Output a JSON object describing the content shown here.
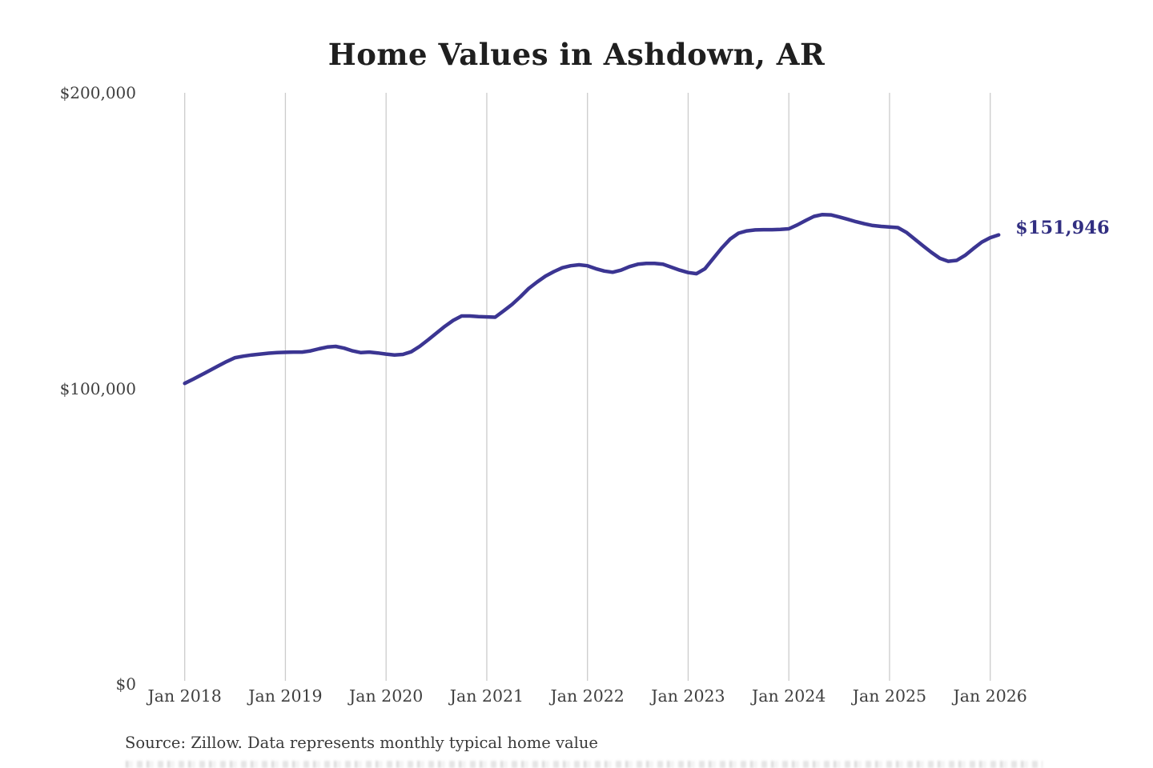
{
  "title": "Home Values in Ashdown, AR",
  "end_label": "$151,946",
  "source_note": "Source: Zillow. Data represents monthly typical home value",
  "colors": {
    "line": "#3b3592",
    "end_label": "#312e81",
    "grid": "#cccccc",
    "title_text": "#1f1f1f",
    "axis_text": "#3f3f3f",
    "source_text": "#3a3a3a",
    "background": "#ffffff"
  },
  "chart_data": {
    "type": "line",
    "title": "Home Values in Ashdown, AR",
    "xlabel": "",
    "ylabel": "",
    "ylim": [
      0,
      200000
    ],
    "y_ticks": [
      0,
      100000,
      200000
    ],
    "y_tick_labels": [
      "$0",
      "$100,000",
      "$200,000"
    ],
    "x_tick_labels": [
      "Jan 2018",
      "Jan 2019",
      "Jan 2020",
      "Jan 2021",
      "Jan 2022",
      "Jan 2023",
      "Jan 2024",
      "Jan 2025",
      "Jan 2026"
    ],
    "grid": "vertical-only",
    "legend": "none",
    "end_value": 151946,
    "series": [
      {
        "name": "Monthly typical home value (USD)",
        "x_start": "2018-01",
        "x_step_months": 1,
        "values": [
          101700,
          103100,
          104600,
          106100,
          107600,
          109100,
          110400,
          110900,
          111300,
          111600,
          111900,
          112100,
          112200,
          112300,
          112300,
          112700,
          113400,
          114000,
          114200,
          113600,
          112700,
          112100,
          112300,
          112000,
          111600,
          111300,
          111500,
          112400,
          114200,
          116400,
          118700,
          121000,
          123000,
          124500,
          124500,
          124300,
          124200,
          124100,
          126200,
          128400,
          131000,
          133800,
          136000,
          138000,
          139500,
          140800,
          141500,
          141800,
          141500,
          140500,
          139700,
          139300,
          140000,
          141200,
          142000,
          142300,
          142300,
          142000,
          141000,
          140000,
          139200,
          138800,
          140500,
          144000,
          147500,
          150500,
          152500,
          153300,
          153600,
          153700,
          153700,
          153800,
          154000,
          155300,
          156800,
          158200,
          158800,
          158700,
          158000,
          157200,
          156400,
          155700,
          155100,
          154800,
          154600,
          154400,
          152800,
          150500,
          148200,
          146000,
          144000,
          143000,
          143300,
          145000,
          147300,
          149500,
          151000,
          151946
        ]
      }
    ]
  }
}
